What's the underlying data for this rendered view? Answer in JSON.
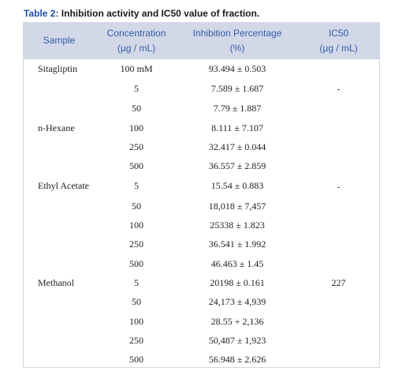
{
  "caption": {
    "label": "Table 2:",
    "text": " Inhibition activity and IC50 value of fraction."
  },
  "columns": [
    {
      "line1": "Sample",
      "line2": ""
    },
    {
      "line1": "Concentration",
      "line2": "(µg / mL)"
    },
    {
      "line1": "Inhibition Percentage",
      "line2": "(%)"
    },
    {
      "line1": "IC50",
      "line2": "(µg / mL)"
    }
  ],
  "rows": [
    {
      "sample": "Sitagliptin",
      "concentration": "100 mM",
      "inhibition": "93.494 ± 0.503",
      "ic50": ""
    },
    {
      "sample": "",
      "concentration": "5",
      "inhibition": "7.589 ± 1.687",
      "ic50": "-"
    },
    {
      "sample": "",
      "concentration": "50",
      "inhibition": "7.79 ± 1.887",
      "ic50": ""
    },
    {
      "sample": "n-Hexane",
      "concentration": "100",
      "inhibition": "8.111 ± 7.107",
      "ic50": ""
    },
    {
      "sample": "",
      "concentration": "250",
      "inhibition": "32.417 ± 0.044",
      "ic50": ""
    },
    {
      "sample": "",
      "concentration": "500",
      "inhibition": "36.557 ± 2.859",
      "ic50": ""
    },
    {
      "sample": "Ethyl Acetate",
      "concentration": "5",
      "inhibition": "15.54 ± 0.883",
      "ic50": "-"
    },
    {
      "sample": "",
      "concentration": "50",
      "inhibition": "18,018 ± 7,457",
      "ic50": ""
    },
    {
      "sample": "",
      "concentration": "100",
      "inhibition": "25338 ± 1.823",
      "ic50": ""
    },
    {
      "sample": "",
      "concentration": "250",
      "inhibition": "36.541 ± 1.992",
      "ic50": ""
    },
    {
      "sample": "",
      "concentration": "500",
      "inhibition": "46.463 ± 1.45",
      "ic50": ""
    },
    {
      "sample": "Methanol",
      "concentration": "5",
      "inhibition": "20198 ± 0.161",
      "ic50": "227"
    },
    {
      "sample": "",
      "concentration": "50",
      "inhibition": "24,173 ± 4,939",
      "ic50": ""
    },
    {
      "sample": "",
      "concentration": "100",
      "inhibition": "28.55 + 2,136",
      "ic50": ""
    },
    {
      "sample": "",
      "concentration": "250",
      "inhibition": "50,487 ± 1,923",
      "ic50": ""
    },
    {
      "sample": "",
      "concentration": "500",
      "inhibition": "56.948 ± 2.626",
      "ic50": ""
    }
  ],
  "colors": {
    "header_bg": "#d3d8e8",
    "header_text": "#2f5fa8",
    "caption_label": "#1f4fa0"
  }
}
